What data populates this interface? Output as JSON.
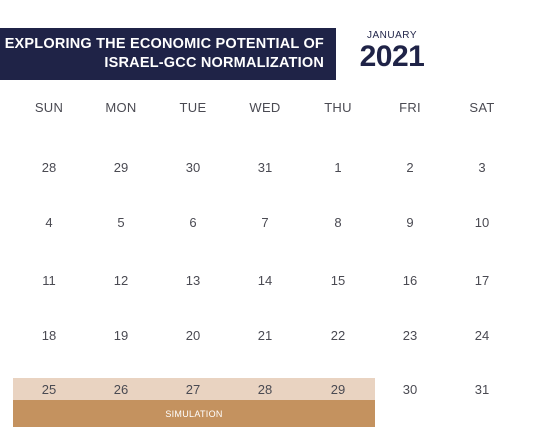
{
  "header": {
    "title_line1": "EXPLORING THE ECONOMIC POTENTIAL OF",
    "title_line2": "ISRAEL-GCC NORMALIZATION",
    "month": "JANUARY",
    "year": "2021"
  },
  "weekdays": [
    "SUN",
    "MON",
    "TUE",
    "WED",
    "THU",
    "FRI",
    "SAT"
  ],
  "weeks": [
    [
      "28",
      "29",
      "30",
      "31",
      "1",
      "2",
      "3"
    ],
    [
      "4",
      "5",
      "6",
      "7",
      "8",
      "9",
      "10"
    ],
    [
      "11",
      "12",
      "13",
      "14",
      "15",
      "16",
      "17"
    ],
    [
      "18",
      "19",
      "20",
      "21",
      "22",
      "23",
      "24"
    ],
    [
      "25",
      "26",
      "27",
      "28",
      "29",
      "30",
      "31"
    ]
  ],
  "event": {
    "label": "SIMULATION",
    "bar_color": "#c4925f",
    "highlight_color": "#e9d3c1"
  },
  "colors": {
    "banner": "#1f2347",
    "text": "#4a4a52"
  }
}
